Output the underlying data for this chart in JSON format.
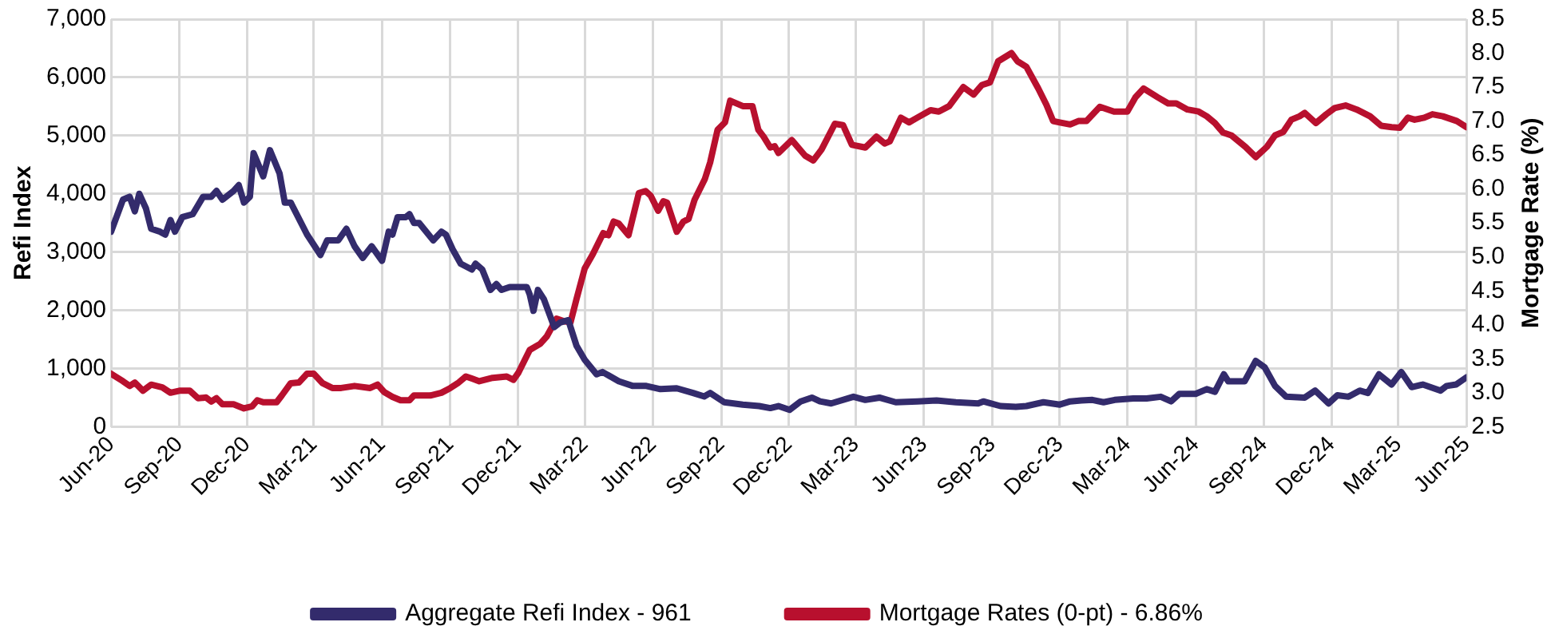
{
  "chart_data": {
    "type": "line",
    "ylabel": "Refi Index",
    "y2label": "Mortgage Rate (%)",
    "grid": true,
    "legend": "bottom",
    "marker": "none",
    "xlim": [
      "2020-06-01",
      "2025-06-01"
    ],
    "xticks": [
      {
        "value": "2020-06-01",
        "label": "Jun-20"
      },
      {
        "value": "2020-09-01",
        "label": "Sep-20"
      },
      {
        "value": "2020-12-01",
        "label": "Dec-20"
      },
      {
        "value": "2021-03-01",
        "label": "Mar-21"
      },
      {
        "value": "2021-06-01",
        "label": "Jun-21"
      },
      {
        "value": "2021-09-01",
        "label": "Sep-21"
      },
      {
        "value": "2021-12-01",
        "label": "Dec-21"
      },
      {
        "value": "2022-03-01",
        "label": "Mar-22"
      },
      {
        "value": "2022-06-01",
        "label": "Jun-22"
      },
      {
        "value": "2022-09-01",
        "label": "Sep-22"
      },
      {
        "value": "2022-12-01",
        "label": "Dec-22"
      },
      {
        "value": "2023-03-01",
        "label": "Mar-23"
      },
      {
        "value": "2023-06-01",
        "label": "Jun-23"
      },
      {
        "value": "2023-09-01",
        "label": "Sep-23"
      },
      {
        "value": "2023-12-01",
        "label": "Dec-23"
      },
      {
        "value": "2024-03-01",
        "label": "Mar-24"
      },
      {
        "value": "2024-06-01",
        "label": "Jun-24"
      },
      {
        "value": "2024-09-01",
        "label": "Sep-24"
      },
      {
        "value": "2024-12-01",
        "label": "Dec-24"
      },
      {
        "value": "2025-03-01",
        "label": "Mar-25"
      },
      {
        "value": "2025-06-01",
        "label": "Jun-25"
      }
    ],
    "ylim": [
      0,
      7000
    ],
    "yticks": [
      {
        "value": 0,
        "label": "0"
      },
      {
        "value": 1000,
        "label": "1,000"
      },
      {
        "value": 2000,
        "label": "2,000"
      },
      {
        "value": 3000,
        "label": "3,000"
      },
      {
        "value": 4000,
        "label": "4,000"
      },
      {
        "value": 5000,
        "label": "5,000"
      },
      {
        "value": 6000,
        "label": "6,000"
      },
      {
        "value": 7000,
        "label": "7,000"
      }
    ],
    "y2lim": [
      2.5,
      8.5
    ],
    "y2ticks": [
      2.5,
      {
        "value": 3,
        "label": "3.0"
      },
      3.5,
      {
        "value": 4,
        "label": "4.0"
      },
      4.5,
      {
        "value": 5,
        "label": "5.0"
      },
      5.5,
      {
        "value": 6,
        "label": "6.0"
      },
      6.5,
      {
        "value": 7,
        "label": "7.0"
      },
      7.5,
      {
        "value": 8,
        "label": "8.0"
      },
      8.5
    ],
    "series": [
      {
        "name": "Aggregate Refi Index - 961",
        "color": "#332b6c",
        "x": [
          "2020-06-01",
          "2020-06-17",
          "2020-06-26",
          "2020-07-03",
          "2020-07-09",
          "2020-07-18",
          "2020-07-25",
          "2020-08-06",
          "2020-08-13",
          "2020-08-20",
          "2020-08-26",
          "2020-09-05",
          "2020-09-19",
          "2020-10-03",
          "2020-10-14",
          "2020-10-21",
          "2020-10-29",
          "2020-11-13",
          "2020-11-20",
          "2020-11-27",
          "2020-12-05",
          "2020-12-10",
          "2020-12-23",
          "2021-01-01",
          "2021-01-14",
          "2021-01-21",
          "2021-01-29",
          "2021-02-20",
          "2021-03-10",
          "2021-03-19",
          "2021-04-03",
          "2021-04-14",
          "2021-04-25",
          "2021-05-06",
          "2021-05-18",
          "2021-06-01",
          "2021-06-10",
          "2021-06-15",
          "2021-06-22",
          "2021-07-03",
          "2021-07-08",
          "2021-07-14",
          "2021-07-21",
          "2021-08-09",
          "2021-08-20",
          "2021-08-26",
          "2021-09-04",
          "2021-09-15",
          "2021-09-30",
          "2021-10-05",
          "2021-10-14",
          "2021-10-25",
          "2021-11-02",
          "2021-11-09",
          "2021-11-20",
          "2021-12-01",
          "2021-12-13",
          "2021-12-17",
          "2021-12-22",
          "2021-12-28",
          "2022-01-05",
          "2022-01-19",
          "2022-01-27",
          "2022-02-07",
          "2022-02-18",
          "2022-03-01",
          "2022-03-17",
          "2022-03-25",
          "2022-04-16",
          "2022-05-05",
          "2022-05-23",
          "2022-06-11",
          "2022-07-03",
          "2022-07-25",
          "2022-08-09",
          "2022-08-17",
          "2022-09-05",
          "2022-09-30",
          "2022-10-22",
          "2022-11-06",
          "2022-11-17",
          "2022-12-02",
          "2022-12-17",
          "2023-01-01",
          "2023-01-12",
          "2023-01-27",
          "2023-02-26",
          "2023-03-14",
          "2023-04-02",
          "2023-04-24",
          "2023-05-23",
          "2023-06-18",
          "2023-07-14",
          "2023-08-13",
          "2023-08-20",
          "2023-09-12",
          "2023-10-03",
          "2023-10-17",
          "2023-11-09",
          "2023-12-01",
          "2023-12-15",
          "2023-12-30",
          "2024-01-14",
          "2024-01-29",
          "2024-02-13",
          "2024-03-09",
          "2024-03-27",
          "2024-04-15",
          "2024-04-29",
          "2024-05-10",
          "2024-06-01",
          "2024-06-16",
          "2024-06-27",
          "2024-07-09",
          "2024-07-15",
          "2024-08-06",
          "2024-08-21",
          "2024-09-02",
          "2024-09-16",
          "2024-10-01",
          "2024-10-26",
          "2024-11-09",
          "2024-11-27",
          "2024-12-09",
          "2024-12-24",
          "2025-01-08",
          "2025-01-19",
          "2025-02-03",
          "2025-02-20",
          "2025-03-05",
          "2025-03-19",
          "2025-04-03",
          "2025-04-27",
          "2025-05-05",
          "2025-05-18",
          "2025-06-01"
        ],
        "values": [
          3350,
          3900,
          3950,
          3700,
          4000,
          3750,
          3400,
          3350,
          3300,
          3550,
          3350,
          3600,
          3650,
          3950,
          3950,
          4050,
          3900,
          4050,
          4150,
          3850,
          3950,
          4700,
          4300,
          4750,
          4350,
          3850,
          3850,
          3300,
          2950,
          3200,
          3200,
          3400,
          3100,
          2900,
          3100,
          2850,
          3350,
          3300,
          3600,
          3600,
          3650,
          3500,
          3500,
          3200,
          3350,
          3300,
          3050,
          2800,
          2700,
          2800,
          2700,
          2350,
          2450,
          2350,
          2400,
          2400,
          2400,
          2270,
          1990,
          2350,
          2190,
          1710,
          1790,
          1830,
          1390,
          1150,
          900,
          940,
          780,
          700,
          700,
          645,
          660,
          580,
          520,
          580,
          420,
          380,
          355,
          320,
          355,
          290,
          435,
          500,
          435,
          400,
          515,
          460,
          500,
          420,
          435,
          450,
          420,
          400,
          435,
          355,
          340,
          355,
          420,
          380,
          435,
          450,
          460,
          420,
          460,
          485,
          485,
          515,
          435,
          565,
          565,
          645,
          600,
          900,
          780,
          780,
          1130,
          1020,
          700,
          515,
          500,
          620,
          400,
          540,
          515,
          620,
          580,
          900,
          725,
          940,
          680,
          725,
          620,
          700,
          725,
          850
        ]
      },
      {
        "name": "Mortgage Rates (0-pt) - 6.86%",
        "color": "#b8102e",
        "axis": "y2",
        "x": [
          "2020-06-01",
          "2020-06-17",
          "2020-06-26",
          "2020-07-03",
          "2020-07-14",
          "2020-07-25",
          "2020-08-09",
          "2020-08-20",
          "2020-09-01",
          "2020-09-15",
          "2020-09-26",
          "2020-10-07",
          "2020-10-14",
          "2020-10-21",
          "2020-10-29",
          "2020-11-13",
          "2020-11-27",
          "2020-12-08",
          "2020-12-15",
          "2020-12-23",
          "2021-01-10",
          "2021-01-17",
          "2021-01-29",
          "2021-02-09",
          "2021-02-20",
          "2021-03-01",
          "2021-03-13",
          "2021-03-26",
          "2021-04-07",
          "2021-04-25",
          "2021-05-16",
          "2021-05-26",
          "2021-06-04",
          "2021-06-15",
          "2021-06-26",
          "2021-07-08",
          "2021-07-14",
          "2021-08-05",
          "2021-08-20",
          "2021-09-01",
          "2021-09-11",
          "2021-09-22",
          "2021-09-30",
          "2021-10-10",
          "2021-10-28",
          "2021-11-16",
          "2021-11-25",
          "2021-12-02",
          "2021-12-17",
          "2021-12-31",
          "2022-01-09",
          "2022-01-22",
          "2022-02-02",
          "2022-02-10",
          "2022-02-18",
          "2022-03-01",
          "2022-03-12",
          "2022-03-26",
          "2022-04-02",
          "2022-04-09",
          "2022-04-16",
          "2022-04-29",
          "2022-05-13",
          "2022-05-22",
          "2022-05-29",
          "2022-06-08",
          "2022-06-15",
          "2022-06-20",
          "2022-07-03",
          "2022-07-12",
          "2022-07-19",
          "2022-07-27",
          "2022-08-10",
          "2022-08-17",
          "2022-08-27",
          "2022-09-06",
          "2022-09-13",
          "2022-09-30",
          "2022-10-13",
          "2022-10-21",
          "2022-10-28",
          "2022-11-06",
          "2022-11-12",
          "2022-11-17",
          "2022-12-05",
          "2022-12-23",
          "2023-01-03",
          "2023-01-14",
          "2023-02-01",
          "2023-02-12",
          "2023-02-24",
          "2023-03-14",
          "2023-03-29",
          "2023-04-09",
          "2023-04-16",
          "2023-05-01",
          "2023-05-12",
          "2023-05-23",
          "2023-06-10",
          "2023-06-21",
          "2023-07-05",
          "2023-07-24",
          "2023-08-07",
          "2023-08-18",
          "2023-08-29",
          "2023-09-09",
          "2023-09-27",
          "2023-10-05",
          "2023-10-17",
          "2023-11-02",
          "2023-11-13",
          "2023-11-22",
          "2023-12-01",
          "2023-12-15",
          "2023-12-26",
          "2024-01-06",
          "2024-01-24",
          "2024-02-12",
          "2024-03-01",
          "2024-03-12",
          "2024-03-23",
          "2024-04-11",
          "2024-04-25",
          "2024-05-06",
          "2024-05-21",
          "2024-06-05",
          "2024-06-16",
          "2024-06-27",
          "2024-07-08",
          "2024-07-19",
          "2024-08-07",
          "2024-08-21",
          "2024-09-05",
          "2024-09-16",
          "2024-09-27",
          "2024-10-08",
          "2024-10-19",
          "2024-10-26",
          "2024-11-10",
          "2024-11-24",
          "2024-12-05",
          "2024-12-20",
          "2025-01-04",
          "2025-01-22",
          "2025-02-06",
          "2025-02-20",
          "2025-03-03",
          "2025-03-14",
          "2025-03-23",
          "2025-04-05",
          "2025-04-16",
          "2025-04-30",
          "2025-05-19",
          "2025-06-01"
        ],
        "values": [
          3.28,
          3.17,
          3.1,
          3.15,
          3.03,
          3.12,
          3.08,
          3.0,
          3.03,
          3.03,
          2.92,
          2.93,
          2.87,
          2.92,
          2.83,
          2.83,
          2.77,
          2.8,
          2.89,
          2.86,
          2.86,
          2.96,
          3.14,
          3.15,
          3.28,
          3.28,
          3.14,
          3.07,
          3.07,
          3.1,
          3.07,
          3.12,
          3.01,
          2.94,
          2.89,
          2.89,
          2.96,
          2.96,
          3.0,
          3.07,
          3.14,
          3.24,
          3.21,
          3.17,
          3.22,
          3.24,
          3.19,
          3.3,
          3.63,
          3.72,
          3.83,
          4.09,
          4.05,
          4.04,
          4.38,
          4.83,
          5.04,
          5.35,
          5.32,
          5.52,
          5.49,
          5.32,
          5.94,
          5.97,
          5.9,
          5.68,
          5.82,
          5.8,
          5.37,
          5.52,
          5.56,
          5.84,
          6.15,
          6.39,
          6.87,
          6.98,
          7.3,
          7.22,
          7.22,
          6.87,
          6.77,
          6.61,
          6.63,
          6.53,
          6.72,
          6.49,
          6.42,
          6.58,
          6.96,
          6.94,
          6.65,
          6.61,
          6.77,
          6.67,
          6.7,
          7.05,
          6.98,
          7.05,
          7.16,
          7.14,
          7.22,
          7.5,
          7.39,
          7.53,
          7.57,
          7.88,
          8.0,
          7.88,
          7.8,
          7.48,
          7.24,
          7.0,
          6.98,
          6.95,
          7.0,
          7.0,
          7.21,
          7.14,
          7.14,
          7.35,
          7.48,
          7.35,
          7.26,
          7.26,
          7.17,
          7.14,
          7.07,
          6.97,
          6.83,
          6.79,
          6.62,
          6.47,
          6.62,
          6.79,
          6.84,
          7.02,
          7.07,
          7.12,
          6.97,
          7.1,
          7.19,
          7.23,
          7.17,
          7.07,
          6.93,
          6.91,
          6.9,
          7.05,
          7.02,
          7.05,
          7.1,
          7.07,
          7.0,
          6.91
        ]
      }
    ]
  }
}
